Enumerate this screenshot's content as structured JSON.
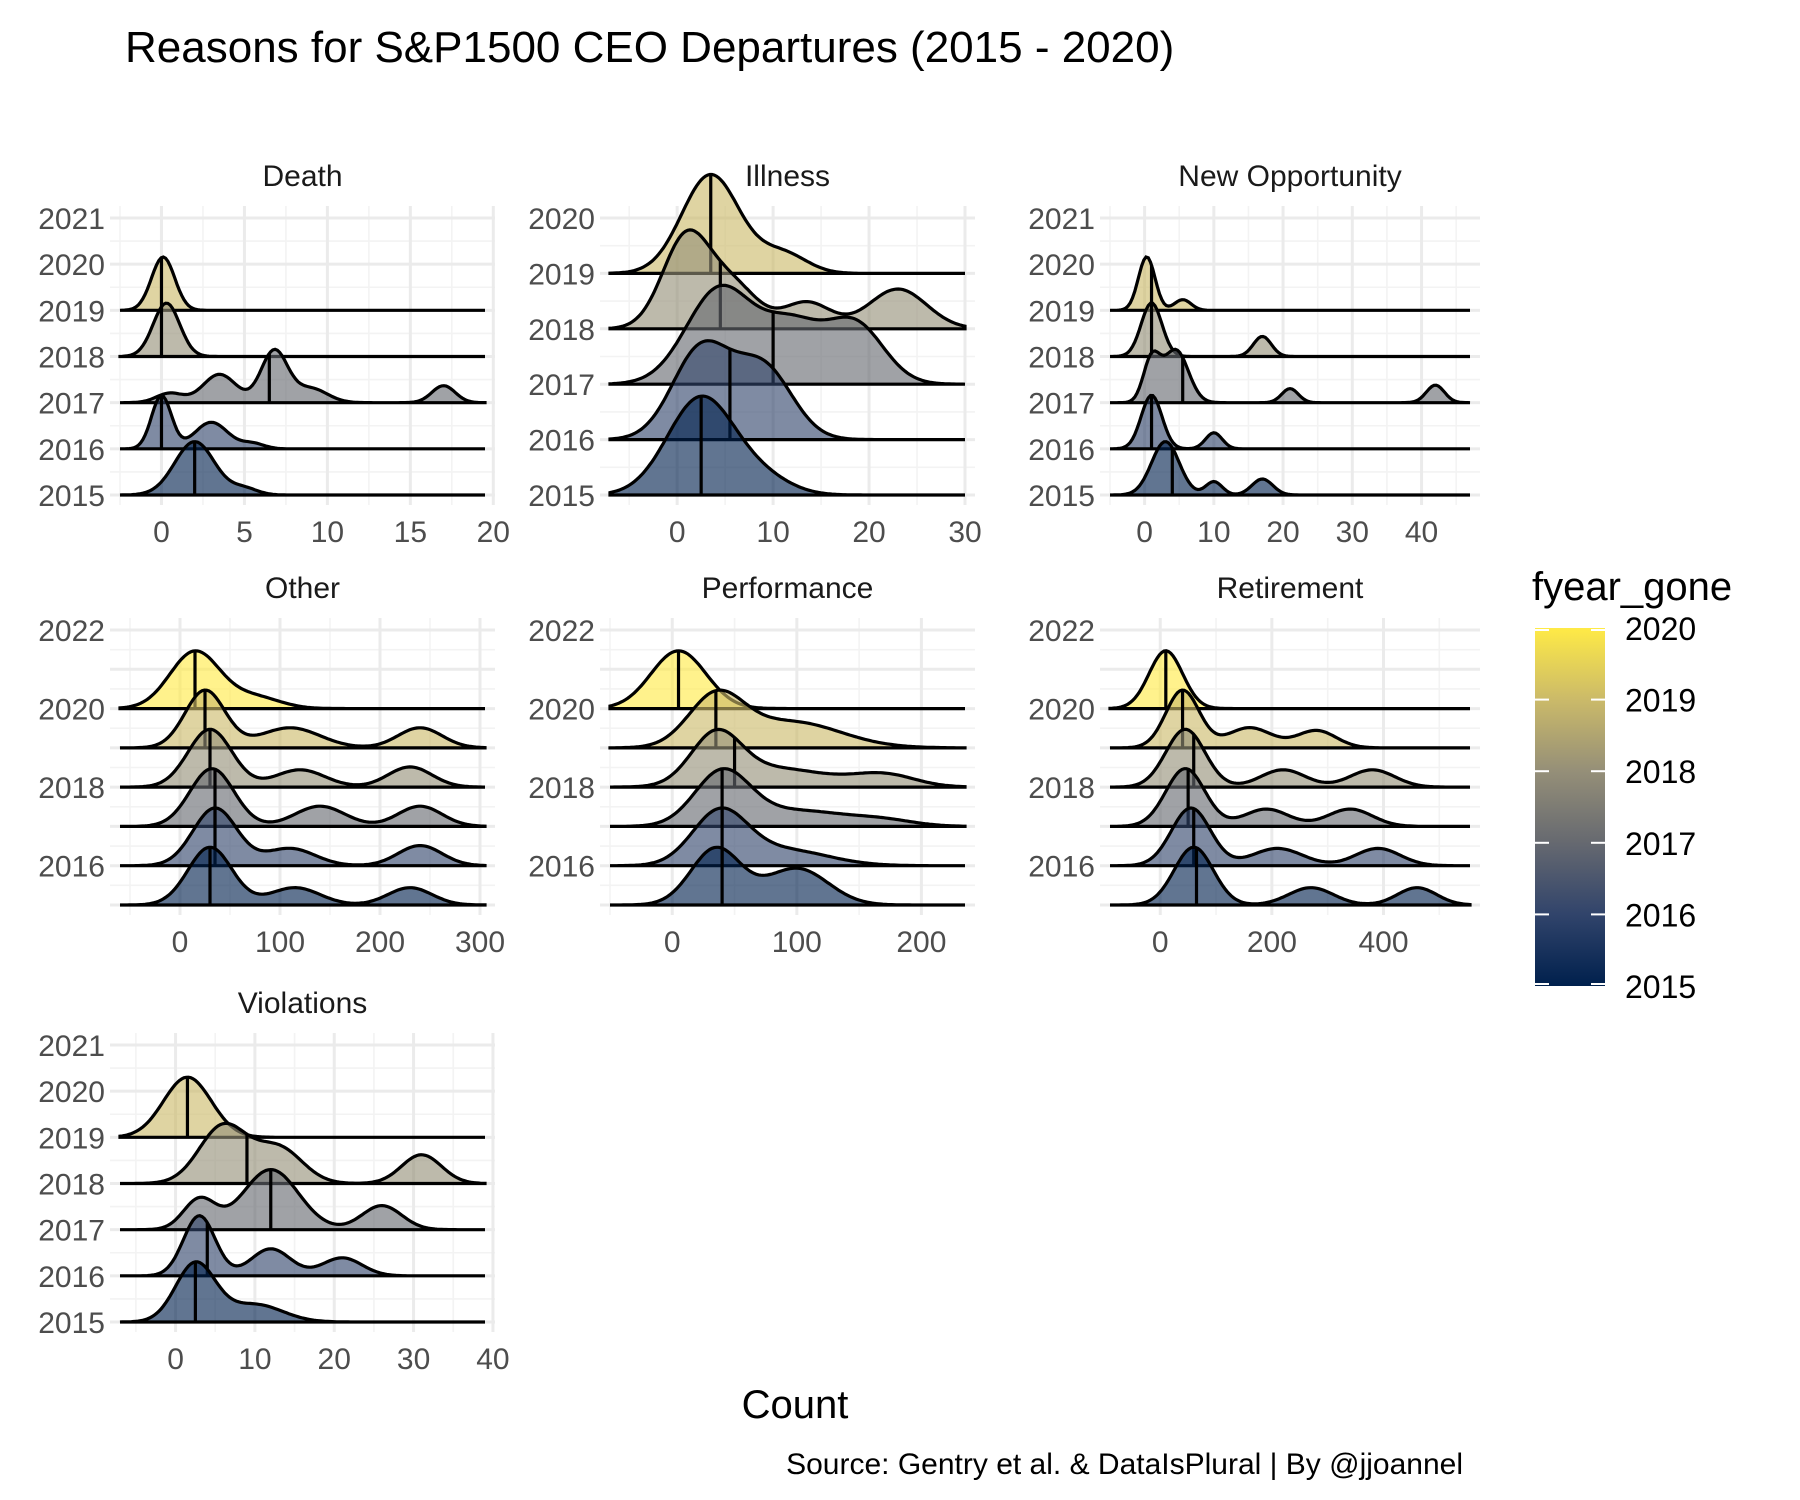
{
  "title": "Reasons for S&P1500 CEO Departures (2015 - 2020)",
  "xlabel": "Count",
  "caption": "Source: Gentry et al. & DataIsPlural | By @jjoannel",
  "legend": {
    "title": "fyear_gone",
    "labels": [
      "2020",
      "2019",
      "2018",
      "2017",
      "2016",
      "2015"
    ],
    "colors": {
      "2015": "#00204d",
      "2016": "#31446b",
      "2017": "#666970",
      "2018": "#958f78",
      "2019": "#cbba69",
      "2020": "#ffea46"
    }
  },
  "chart_data": {
    "type": "ridgeline",
    "series_key": "fyear_gone",
    "panels": [
      {
        "name": "Death",
        "xlim": [
          -2.5,
          19.5
        ],
        "ylim": [
          2015,
          2021
        ],
        "xticks": [
          "0",
          "5",
          "10",
          "15",
          "20"
        ],
        "xtick_values": [
          0,
          5,
          10,
          15,
          20
        ],
        "yticks": [
          "2015",
          "2016",
          "2017",
          "2018",
          "2019",
          "2020",
          "2021"
        ],
        "scale": 0.55,
        "series": [
          {
            "year": 2015,
            "median": 2,
            "peaks": [
              [
                2,
                1.0,
                1.2
              ],
              [
                5,
                0.12,
                0.8
              ]
            ]
          },
          {
            "year": 2016,
            "median": 0,
            "peaks": [
              [
                0,
                1.0,
                0.6
              ],
              [
                3,
                0.5,
                1.0
              ],
              [
                5.5,
                0.1,
                0.7
              ]
            ]
          },
          {
            "year": 2017,
            "median": 6.5,
            "peaks": [
              [
                0.5,
                0.1,
                0.8
              ],
              [
                3.5,
                0.3,
                1.0
              ],
              [
                6.8,
                0.55,
                0.8
              ],
              [
                9,
                0.15,
                1.0
              ],
              [
                17,
                0.18,
                0.7
              ]
            ]
          },
          {
            "year": 2018,
            "median": 0,
            "peaks": [
              [
                0.3,
                1.0,
                0.8
              ]
            ]
          },
          {
            "year": 2019,
            "median": 0,
            "peaks": [
              [
                0.1,
                1.0,
                0.7
              ]
            ]
          }
        ]
      },
      {
        "name": "Illness",
        "xlim": [
          -7,
          30
        ],
        "ylim": [
          2015,
          2020
        ],
        "xticks": [
          "0",
          "10",
          "20",
          "30"
        ],
        "xtick_values": [
          0,
          10,
          20,
          30
        ],
        "yticks": [
          "2015",
          "2016",
          "2017",
          "2018",
          "2019",
          "2020"
        ],
        "scale": 0.85,
        "series": [
          {
            "year": 2015,
            "median": 2.5,
            "peaks": [
              [
                2.5,
                1.0,
                3.5
              ],
              [
                9,
                0.15,
                3
              ]
            ]
          },
          {
            "year": 2016,
            "median": 5.5,
            "peaks": [
              [
                2.5,
                0.7,
                3
              ],
              [
                9,
                0.55,
                3
              ]
            ]
          },
          {
            "year": 2017,
            "median": 10,
            "peaks": [
              [
                4.5,
                0.8,
                3.5
              ],
              [
                12,
                0.45,
                3
              ],
              [
                18.5,
                0.5,
                3
              ]
            ]
          },
          {
            "year": 2018,
            "median": 4.5,
            "peaks": [
              [
                1,
                0.7,
                2.5
              ],
              [
                6,
                0.3,
                2.5
              ],
              [
                13.5,
                0.2,
                2.5
              ],
              [
                23,
                0.3,
                3
              ]
            ]
          },
          {
            "year": 2019,
            "median": 3.5,
            "peaks": [
              [
                3.5,
                1.0,
                3
              ],
              [
                11,
                0.2,
                2.5
              ]
            ]
          }
        ]
      },
      {
        "name": "New Opportunity",
        "xlim": [
          -5,
          47
        ],
        "ylim": [
          2015,
          2021
        ],
        "xticks": [
          "0",
          "10",
          "20",
          "30",
          "40"
        ],
        "xtick_values": [
          0,
          10,
          20,
          30,
          40
        ],
        "yticks": [
          "2015",
          "2016",
          "2017",
          "2018",
          "2019",
          "2020",
          "2021"
        ],
        "scale": 0.55,
        "series": [
          {
            "year": 2015,
            "median": 4,
            "peaks": [
              [
                3,
                1.0,
                2
              ],
              [
                10,
                0.25,
                1.2
              ],
              [
                17,
                0.3,
                1.5
              ]
            ]
          },
          {
            "year": 2016,
            "median": 1,
            "peaks": [
              [
                1,
                1.0,
                1.5
              ],
              [
                10,
                0.3,
                1.2
              ]
            ]
          },
          {
            "year": 2017,
            "median": 5.5,
            "peaks": [
              [
                1,
                0.6,
                1.2
              ],
              [
                4.5,
                0.75,
                1.8
              ],
              [
                21,
                0.2,
                1.2
              ],
              [
                42,
                0.25,
                1.3
              ]
            ]
          },
          {
            "year": 2018,
            "median": 1,
            "peaks": [
              [
                1,
                0.8,
                1.5
              ],
              [
                17,
                0.3,
                1.3
              ]
            ]
          },
          {
            "year": 2019,
            "median": 1,
            "peaks": [
              [
                0.3,
                1.0,
                1.2
              ],
              [
                5.5,
                0.2,
                1.2
              ]
            ]
          }
        ]
      },
      {
        "name": "Other",
        "xlim": [
          -60,
          305
        ],
        "ylim": [
          2015,
          2022
        ],
        "xticks": [
          "0",
          "100",
          "200",
          "300"
        ],
        "xtick_values": [
          0,
          100,
          200,
          300
        ],
        "yticks": [
          "2016",
          "2018",
          "2020",
          "2022"
        ],
        "scale": 0.7,
        "series": [
          {
            "year": 2015,
            "median": 30,
            "peaks": [
              [
                30,
                1.0,
                22
              ],
              [
                115,
                0.3,
                25
              ],
              [
                230,
                0.3,
                22
              ]
            ]
          },
          {
            "year": 2016,
            "median": 35,
            "peaks": [
              [
                35,
                1.0,
                22
              ],
              [
                110,
                0.3,
                25
              ],
              [
                240,
                0.35,
                22
              ]
            ]
          },
          {
            "year": 2017,
            "median": 35,
            "peaks": [
              [
                32,
                1.0,
                22
              ],
              [
                140,
                0.35,
                25
              ],
              [
                240,
                0.35,
                22
              ]
            ]
          },
          {
            "year": 2018,
            "median": 30,
            "peaks": [
              [
                30,
                1.0,
                22
              ],
              [
                120,
                0.3,
                25
              ],
              [
                230,
                0.35,
                22
              ]
            ]
          },
          {
            "year": 2019,
            "median": 25,
            "peaks": [
              [
                25,
                1.0,
                20
              ],
              [
                110,
                0.35,
                30
              ],
              [
                240,
                0.35,
                22
              ]
            ]
          },
          {
            "year": 2020,
            "median": 15,
            "peaks": [
              [
                15,
                1.0,
                25
              ],
              [
                75,
                0.2,
                25
              ]
            ]
          }
        ]
      },
      {
        "name": "Performance",
        "xlim": [
          -50,
          235
        ],
        "ylim": [
          2015,
          2022
        ],
        "xticks": [
          "0",
          "100",
          "200"
        ],
        "xtick_values": [
          0,
          100,
          200
        ],
        "yticks": [
          "2016",
          "2018",
          "2020",
          "2022"
        ],
        "scale": 0.7,
        "series": [
          {
            "year": 2015,
            "median": 40,
            "peaks": [
              [
                35,
                0.85,
                20
              ],
              [
                100,
                0.55,
                25
              ]
            ]
          },
          {
            "year": 2016,
            "median": 40,
            "peaks": [
              [
                38,
                1.0,
                22
              ],
              [
                90,
                0.3,
                35
              ]
            ]
          },
          {
            "year": 2017,
            "median": 40,
            "peaks": [
              [
                40,
                1.0,
                22
              ],
              [
                100,
                0.3,
                40
              ],
              [
                170,
                0.1,
                25
              ]
            ]
          },
          {
            "year": 2018,
            "median": 50,
            "peaks": [
              [
                35,
                0.8,
                20
              ],
              [
                85,
                0.3,
                40
              ],
              [
                170,
                0.2,
                25
              ]
            ]
          },
          {
            "year": 2019,
            "median": 35,
            "peaks": [
              [
                35,
                0.75,
                22
              ],
              [
                95,
                0.4,
                40
              ]
            ]
          },
          {
            "year": 2020,
            "median": 5,
            "peaks": [
              [
                5,
                1.0,
                22
              ]
            ]
          }
        ]
      },
      {
        "name": "Retirement",
        "xlim": [
          -90,
          555
        ],
        "ylim": [
          2015,
          2022
        ],
        "xticks": [
          "0",
          "200",
          "400"
        ],
        "xtick_values": [
          0,
          200,
          400
        ],
        "yticks": [
          "2016",
          "2018",
          "2020",
          "2022"
        ],
        "scale": 0.7,
        "series": [
          {
            "year": 2015,
            "median": 65,
            "peaks": [
              [
                60,
                1.0,
                35
              ],
              [
                270,
                0.3,
                40
              ],
              [
                460,
                0.3,
                35
              ]
            ]
          },
          {
            "year": 2016,
            "median": 60,
            "peaks": [
              [
                55,
                1.0,
                35
              ],
              [
                210,
                0.3,
                45
              ],
              [
                390,
                0.3,
                40
              ]
            ]
          },
          {
            "year": 2017,
            "median": 50,
            "peaks": [
              [
                45,
                1.0,
                35
              ],
              [
                190,
                0.3,
                40
              ],
              [
                340,
                0.3,
                40
              ]
            ]
          },
          {
            "year": 2018,
            "median": 60,
            "peaks": [
              [
                45,
                1.0,
                35
              ],
              [
                220,
                0.3,
                40
              ],
              [
                380,
                0.3,
                40
              ]
            ]
          },
          {
            "year": 2019,
            "median": 40,
            "peaks": [
              [
                40,
                1.0,
                30
              ],
              [
                160,
                0.35,
                40
              ],
              [
                280,
                0.3,
                35
              ]
            ]
          },
          {
            "year": 2020,
            "median": 10,
            "peaks": [
              [
                10,
                1.0,
                30
              ]
            ]
          }
        ]
      },
      {
        "name": "Violations",
        "xlim": [
          -7,
          39
        ],
        "ylim": [
          2015,
          2021
        ],
        "xticks": [
          "0",
          "10",
          "20",
          "30",
          "40"
        ],
        "xtick_values": [
          0,
          10,
          20,
          30,
          40
        ],
        "yticks": [
          "2015",
          "2016",
          "2017",
          "2018",
          "2019",
          "2020",
          "2021"
        ],
        "scale": 0.62,
        "series": [
          {
            "year": 2015,
            "median": 2.5,
            "peaks": [
              [
                2.5,
                1.0,
                2.5
              ],
              [
                10,
                0.3,
                3.5
              ]
            ]
          },
          {
            "year": 2016,
            "median": 4,
            "peaks": [
              [
                3,
                1.0,
                2
              ],
              [
                12,
                0.45,
                2.5
              ],
              [
                21,
                0.3,
                2.5
              ]
            ]
          },
          {
            "year": 2017,
            "median": 12,
            "peaks": [
              [
                3,
                0.5,
                2
              ],
              [
                12,
                1.0,
                3.5
              ],
              [
                26,
                0.4,
                2.5
              ]
            ]
          },
          {
            "year": 2018,
            "median": 9,
            "peaks": [
              [
                6,
                0.9,
                3
              ],
              [
                13,
                0.55,
                3
              ],
              [
                31,
                0.45,
                2.5
              ]
            ]
          },
          {
            "year": 2019,
            "median": 1.5,
            "peaks": [
              [
                1.5,
                1.0,
                3
              ]
            ]
          }
        ]
      }
    ]
  }
}
